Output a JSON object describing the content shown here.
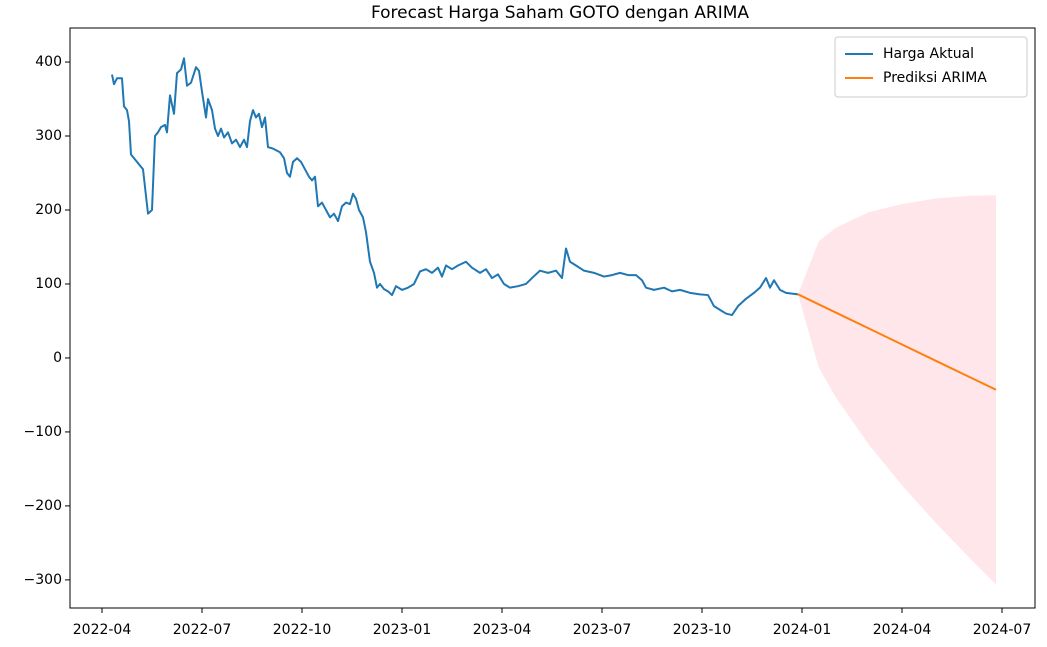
{
  "chart_data": {
    "type": "line",
    "title": "Forecast Harga Saham GOTO dengan ARIMA",
    "xlim": [
      -0.96,
      27.99
    ],
    "xticks": [
      {
        "value": 0,
        "label": "2022-04"
      },
      {
        "value": 3,
        "label": "2022-07"
      },
      {
        "value": 6,
        "label": "2022-10"
      },
      {
        "value": 9,
        "label": "2023-01"
      },
      {
        "value": 12,
        "label": "2023-04"
      },
      {
        "value": 15,
        "label": "2023-07"
      },
      {
        "value": 18,
        "label": "2023-10"
      },
      {
        "value": 21,
        "label": "2024-01"
      },
      {
        "value": 24,
        "label": "2024-04"
      },
      {
        "value": 27,
        "label": "2024-07"
      }
    ],
    "ylim": [
      -338,
      446
    ],
    "yticks": [
      {
        "value": -300,
        "label": "−300"
      },
      {
        "value": -200,
        "label": "−200"
      },
      {
        "value": -100,
        "label": "−100"
      },
      0,
      100,
      200,
      300,
      400
    ],
    "legend": "upper right",
    "series": [
      {
        "name": "Harga Aktual",
        "color": "#1f77b4",
        "x": [
          0.3,
          0.36,
          0.45,
          0.6,
          0.66,
          0.75,
          0.81,
          0.87,
          1.05,
          1.23,
          1.38,
          1.5,
          1.59,
          1.68,
          1.77,
          1.89,
          1.95,
          2.04,
          2.16,
          2.25,
          2.37,
          2.46,
          2.55,
          2.67,
          2.82,
          2.91,
          3.0,
          3.12,
          3.18,
          3.3,
          3.39,
          3.48,
          3.57,
          3.66,
          3.78,
          3.9,
          4.02,
          4.14,
          4.26,
          4.35,
          4.44,
          4.53,
          4.62,
          4.71,
          4.8,
          4.89,
          4.98,
          5.13,
          5.34,
          5.46,
          5.55,
          5.64,
          5.73,
          5.85,
          5.97,
          6.09,
          6.21,
          6.3,
          6.39,
          6.48,
          6.6,
          6.72,
          6.84,
          6.96,
          7.08,
          7.2,
          7.32,
          7.44,
          7.53,
          7.62,
          7.71,
          7.83,
          7.92,
          8.04,
          8.16,
          8.25,
          8.34,
          8.46,
          8.58,
          8.7,
          8.82,
          9.0,
          9.18,
          9.36,
          9.54,
          9.72,
          9.9,
          10.08,
          10.2,
          10.32,
          10.5,
          10.68,
          10.92,
          11.1,
          11.34,
          11.52,
          11.7,
          11.88,
          12.06,
          12.24,
          12.48,
          12.72,
          12.9,
          13.14,
          13.38,
          13.62,
          13.8,
          13.92,
          14.04,
          14.22,
          14.46,
          14.76,
          15.06,
          15.3,
          15.54,
          15.78,
          16.02,
          16.2,
          16.32,
          16.56,
          16.86,
          17.1,
          17.34,
          17.64,
          17.94,
          18.18,
          18.36,
          18.54,
          18.72,
          18.9,
          19.08,
          19.32,
          19.56,
          19.74,
          19.92,
          20.04,
          20.16,
          20.34,
          20.52,
          20.7,
          20.88
        ],
        "values": [
          383,
          370,
          378,
          378,
          340,
          335,
          320,
          275,
          265,
          255,
          195,
          200,
          300,
          305,
          312,
          315,
          305,
          355,
          330,
          385,
          390,
          405,
          368,
          372,
          393,
          388,
          360,
          325,
          350,
          335,
          310,
          300,
          310,
          298,
          305,
          290,
          295,
          285,
          295,
          285,
          320,
          335,
          325,
          330,
          312,
          325,
          285,
          283,
          278,
          270,
          250,
          245,
          265,
          270,
          265,
          255,
          245,
          240,
          245,
          205,
          210,
          200,
          190,
          195,
          185,
          205,
          210,
          208,
          222,
          215,
          200,
          190,
          170,
          130,
          115,
          95,
          100,
          93,
          90,
          85,
          97,
          92,
          95,
          100,
          117,
          120,
          115,
          122,
          110,
          125,
          120,
          125,
          130,
          122,
          115,
          120,
          108,
          113,
          100,
          95,
          97,
          100,
          108,
          118,
          115,
          118,
          108,
          148,
          130,
          125,
          118,
          115,
          110,
          112,
          115,
          112,
          112,
          105,
          95,
          92,
          95,
          90,
          92,
          88,
          86,
          85,
          70,
          65,
          60,
          58,
          70,
          80,
          88,
          95,
          108,
          95,
          105,
          92,
          88,
          87,
          86
        ]
      },
      {
        "name": "Prediksi ARIMA",
        "color": "#ff7f0e",
        "band_color": "#ffc0cb",
        "x": [
          20.88,
          21.5,
          22,
          23,
          24,
          25,
          26,
          26.82
        ],
        "values": [
          86,
          72.5,
          61.7,
          40,
          18.2,
          -3.5,
          -25.2,
          -43
        ],
        "lower": [
          86,
          -12.5,
          -52.3,
          -117,
          -172,
          -222.5,
          -269,
          -306
        ],
        "upper": [
          86,
          157.5,
          175.7,
          197,
          208,
          215.5,
          219,
          220
        ]
      }
    ]
  }
}
